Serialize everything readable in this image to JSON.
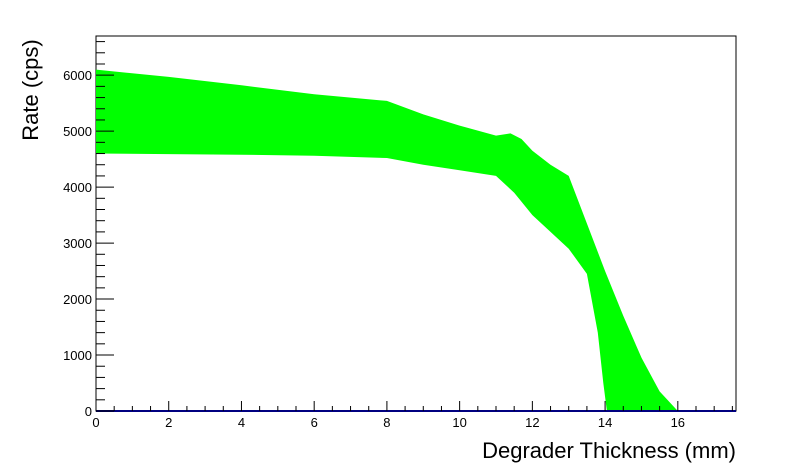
{
  "chart_data": {
    "type": "area",
    "title": "",
    "xlabel": "Degrader Thickness (mm)",
    "ylabel": "Rate (cps)",
    "xlim": [
      0,
      17.6
    ],
    "ylim": [
      0,
      6700
    ],
    "x_ticks": [
      0,
      2,
      4,
      6,
      8,
      10,
      12,
      14,
      16
    ],
    "x_tick_labels": [
      "0",
      "2",
      "4",
      "6",
      "8",
      "10",
      "12",
      "14",
      "16"
    ],
    "y_ticks": [
      0,
      1000,
      2000,
      3000,
      4000,
      5000,
      6000
    ],
    "y_tick_labels": [
      "0",
      "1000",
      "2000",
      "3000",
      "4000",
      "5000",
      "6000"
    ],
    "grid": false,
    "legend": "none",
    "band_color": "#00ff00",
    "baseline_color": "#000080",
    "series": [
      {
        "role": "upper",
        "x": [
          0,
          2,
          4,
          6,
          8,
          9,
          10,
          11,
          11.4,
          11.7,
          12,
          12.5,
          13,
          13.5,
          14,
          14.5,
          15,
          15.5,
          16
        ],
        "values": [
          6100,
          5970,
          5820,
          5660,
          5540,
          5300,
          5100,
          4920,
          4960,
          4860,
          4650,
          4400,
          4200,
          3350,
          2500,
          1700,
          950,
          350,
          0
        ]
      },
      {
        "role": "lower",
        "x": [
          0,
          2,
          4,
          6,
          8,
          9,
          10,
          11,
          11.5,
          12,
          12.5,
          13,
          13.5,
          13.8,
          13.95,
          14.05
        ],
        "values": [
          4600,
          4590,
          4580,
          4560,
          4520,
          4400,
          4300,
          4200,
          3900,
          3500,
          3200,
          2900,
          2450,
          1400,
          500,
          0
        ]
      }
    ]
  }
}
